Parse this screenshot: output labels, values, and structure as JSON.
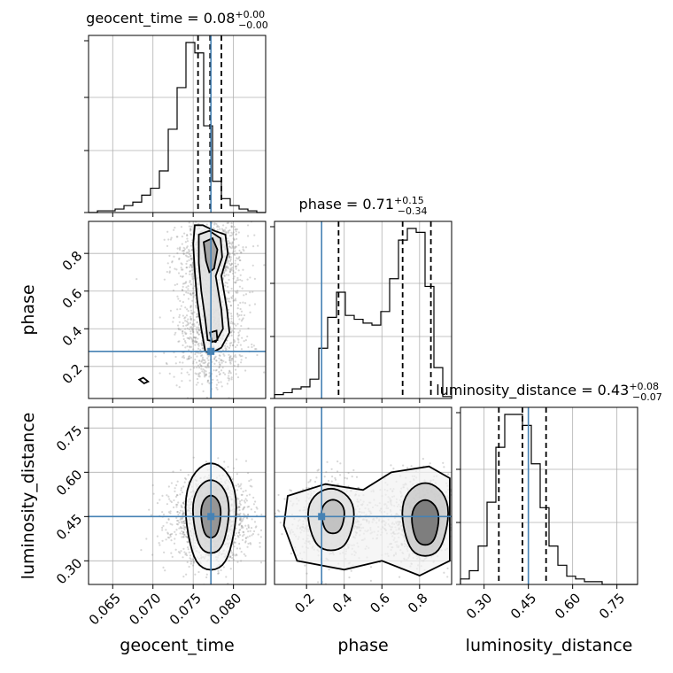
{
  "chart_data": {
    "type": "corner",
    "parameters": [
      {
        "name": "geocent_time",
        "axis_label": "geocent_time",
        "title_prefix": "geocent_time = ",
        "median": "0.08",
        "plus": "+0.00",
        "minus": "−0.00",
        "range": [
          0.062,
          0.084
        ],
        "ticks": [
          0.065,
          0.07,
          0.075,
          0.08
        ],
        "tick_labels": [
          "0.065",
          "0.070",
          "0.075",
          "0.080"
        ],
        "truth": 0.0772,
        "quantiles": [
          0.0756,
          0.0771,
          0.0785
        ]
      },
      {
        "name": "phase",
        "axis_label": "phase",
        "title_prefix": "phase = ",
        "median": "0.71",
        "plus": "+0.15",
        "minus": "−0.34",
        "range": [
          0.03,
          0.97
        ],
        "ticks": [
          0.2,
          0.4,
          0.6,
          0.8
        ],
        "tick_labels": [
          "0.2",
          "0.4",
          "0.6",
          "0.8"
        ],
        "truth": 0.28,
        "quantiles": [
          0.37,
          0.71,
          0.86
        ]
      },
      {
        "name": "luminosity_distance",
        "axis_label": "luminosity_distance",
        "title_prefix": "luminosity_distance = ",
        "median": "0.43",
        "plus": "+0.08",
        "minus": "−0.07",
        "range": [
          0.22,
          0.82
        ],
        "ticks": [
          0.3,
          0.45,
          0.6,
          0.75
        ],
        "tick_labels": [
          "0.30",
          "0.45",
          "0.60",
          "0.75"
        ],
        "truth": 0.45,
        "quantiles": [
          0.35,
          0.43,
          0.51
        ]
      }
    ],
    "histograms": [
      {
        "param": "geocent_time",
        "bins": 20,
        "counts": [
          0,
          1,
          1,
          2,
          4,
          6,
          10,
          14,
          24,
          48,
          72,
          98,
          92,
          50,
          18,
          8,
          4,
          2,
          1,
          0
        ]
      },
      {
        "param": "phase",
        "bins": 20,
        "counts": [
          2,
          3,
          5,
          6,
          10,
          26,
          42,
          55,
          43,
          41,
          39,
          38,
          45,
          62,
          82,
          88,
          86,
          58,
          16,
          1
        ]
      },
      {
        "param": "luminosity_distance",
        "bins": 20,
        "counts": [
          2,
          5,
          14,
          30,
          50,
          62,
          62,
          58,
          44,
          28,
          14,
          7,
          3,
          2,
          1,
          1,
          0,
          0,
          0,
          0
        ]
      }
    ],
    "truth_color": "#4682b4",
    "hist_color": "#000000",
    "grid": true
  }
}
